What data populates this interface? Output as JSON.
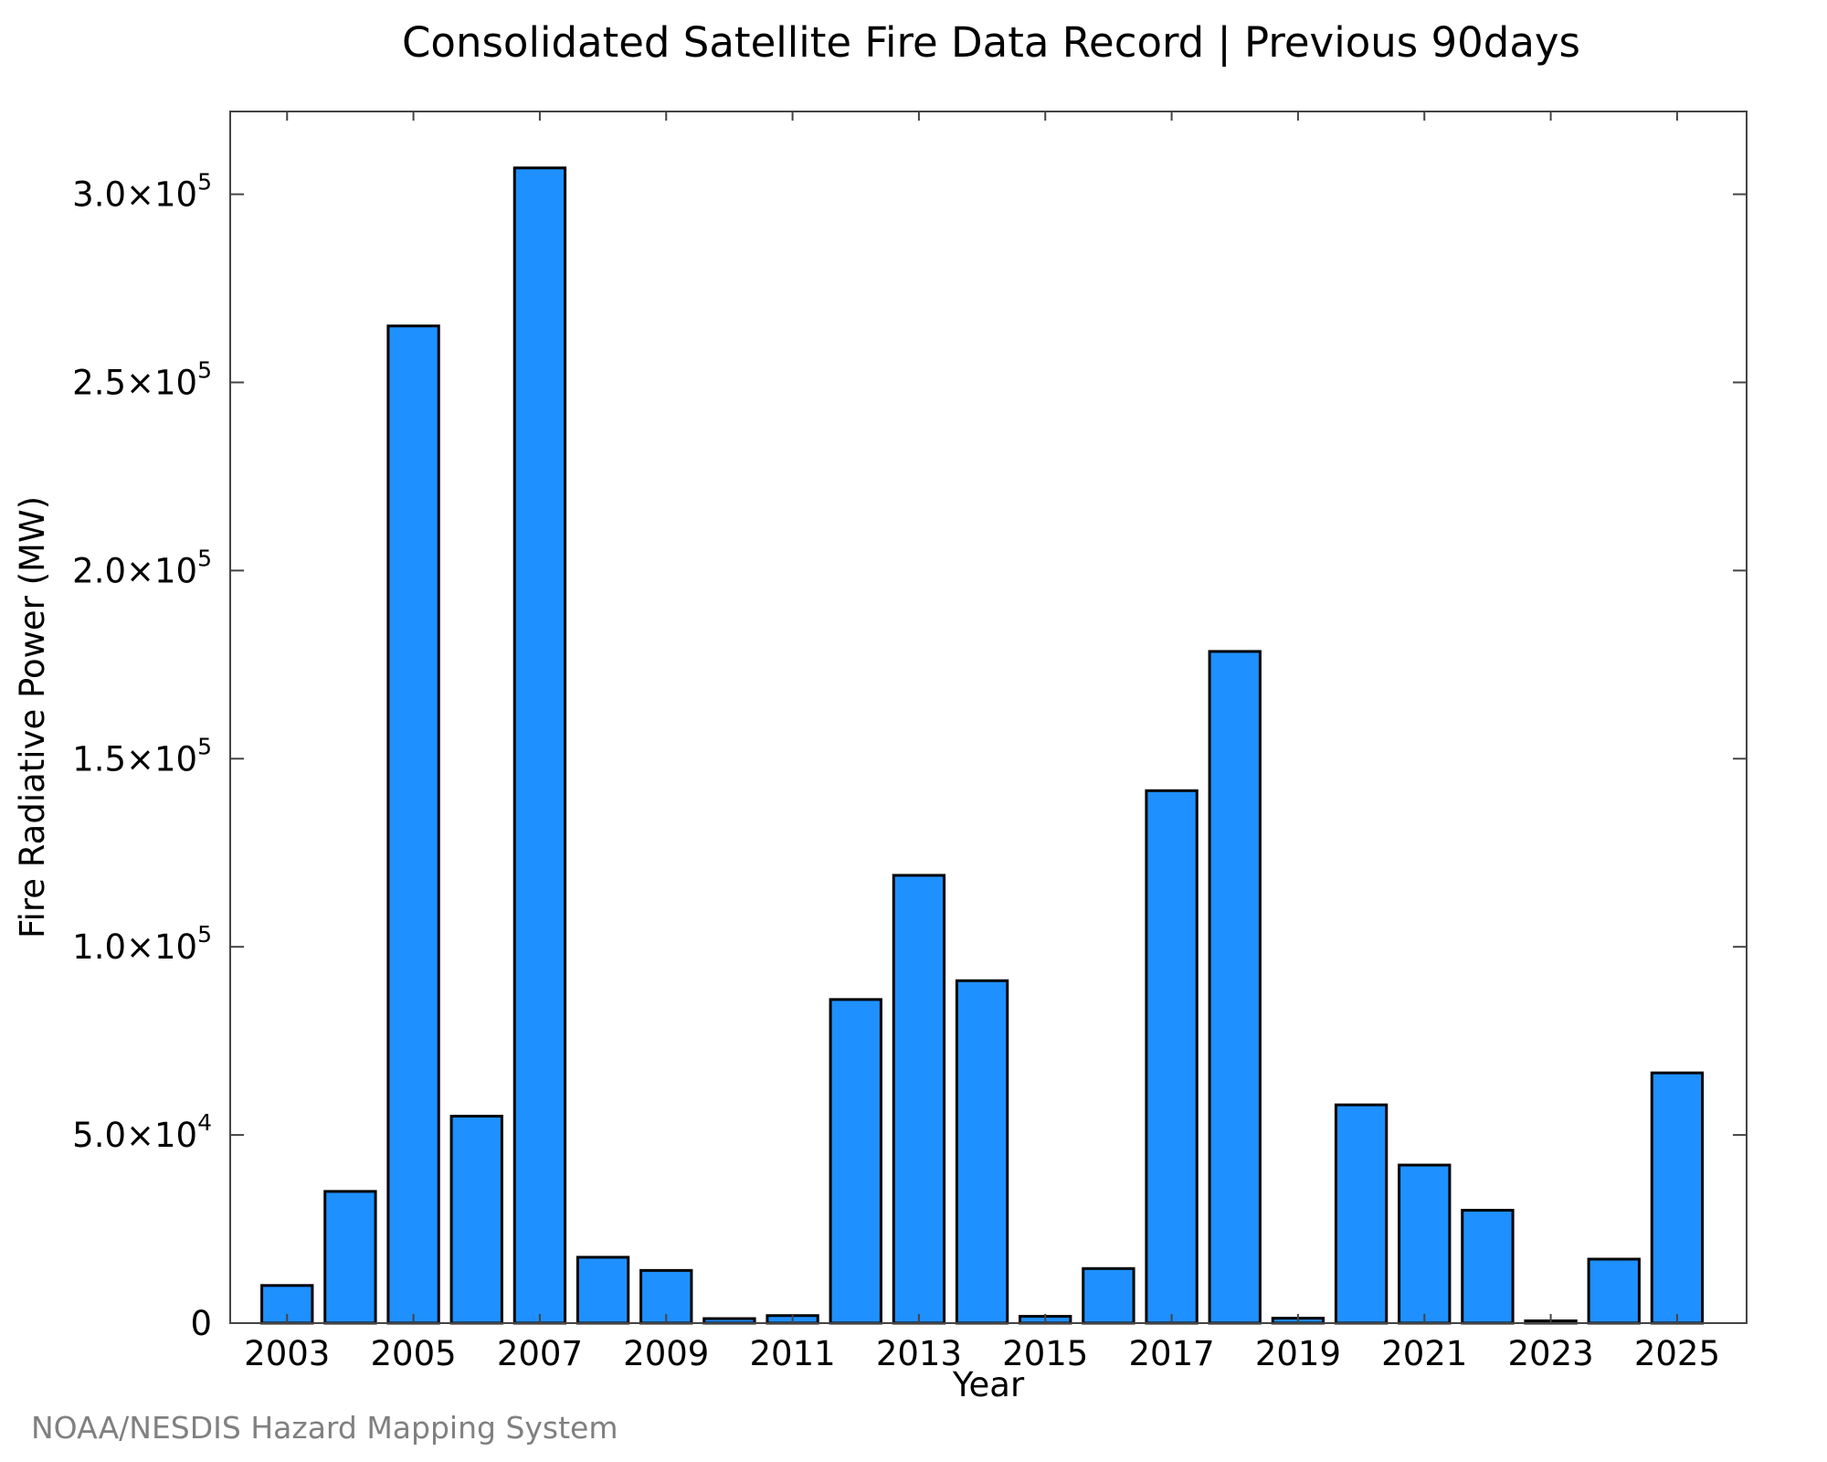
{
  "chart_data": {
    "type": "bar",
    "title": "Consolidated Satellite Fire Data Record | Previous 90days",
    "xlabel": "Year",
    "ylabel": "Fire Radiative Power (MW)",
    "categories": [
      "2003",
      "2004",
      "2005",
      "2006",
      "2007",
      "2008",
      "2009",
      "2010",
      "2011",
      "2012",
      "2013",
      "2014",
      "2015",
      "2016",
      "2017",
      "2018",
      "2019",
      "2020",
      "2021",
      "2022",
      "2023",
      "2024",
      "2025"
    ],
    "values": [
      10000,
      35000,
      265000,
      55000,
      307000,
      17500,
      14000,
      1200,
      2000,
      86000,
      119000,
      91000,
      1800,
      14500,
      141500,
      178500,
      1300,
      58000,
      42000,
      30000,
      600,
      17000,
      66500
    ],
    "ylim": [
      0,
      322000
    ],
    "xlim": [
      2002.1,
      2026.1
    ],
    "x_ticks": [
      {
        "value": 2003,
        "label": "2003"
      },
      {
        "value": 2005,
        "label": "2005"
      },
      {
        "value": 2007,
        "label": "2007"
      },
      {
        "value": 2009,
        "label": "2009"
      },
      {
        "value": 2011,
        "label": "2011"
      },
      {
        "value": 2013,
        "label": "2013"
      },
      {
        "value": 2015,
        "label": "2015"
      },
      {
        "value": 2017,
        "label": "2017"
      },
      {
        "value": 2019,
        "label": "2019"
      },
      {
        "value": 2021,
        "label": "2021"
      },
      {
        "value": 2023,
        "label": "2023"
      },
      {
        "value": 2025,
        "label": "2025"
      }
    ],
    "y_ticks": [
      {
        "value": 0,
        "mantissa": "0",
        "exponent": ""
      },
      {
        "value": 50000,
        "mantissa": "5.0×10",
        "exponent": "4"
      },
      {
        "value": 100000,
        "mantissa": "1.0×10",
        "exponent": "5"
      },
      {
        "value": 150000,
        "mantissa": "1.5×10",
        "exponent": "5"
      },
      {
        "value": 200000,
        "mantissa": "2.0×10",
        "exponent": "5"
      },
      {
        "value": 250000,
        "mantissa": "2.5×10",
        "exponent": "5"
      },
      {
        "value": 300000,
        "mantissa": "3.0×10",
        "exponent": "5"
      }
    ],
    "bar_color": "#1e90ff",
    "bar_edge_color": "#000000",
    "grid": false,
    "legend": "none"
  },
  "footer": {
    "credit": "NOAA/NESDIS Hazard Mapping System"
  }
}
